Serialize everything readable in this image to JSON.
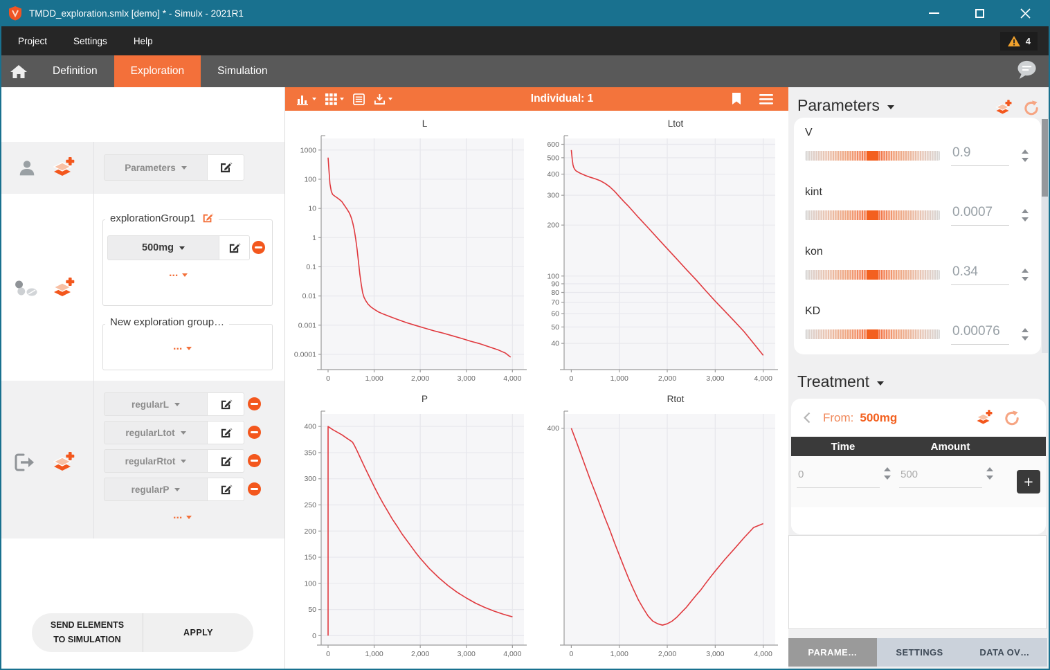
{
  "window": {
    "title": "TMDD_exploration.smlx [demo] * - Simulx - 2021R1"
  },
  "menu": {
    "items": [
      "Project",
      "Settings",
      "Help"
    ],
    "warning_count": "4"
  },
  "nav": {
    "tabs": [
      {
        "label": "Definition",
        "active": false
      },
      {
        "label": "Exploration",
        "active": true
      },
      {
        "label": "Simulation",
        "active": false
      }
    ]
  },
  "sidebar": {
    "selector": {
      "label": "Parameters"
    },
    "group1": {
      "title": "explorationGroup1",
      "dose_label": "500mg",
      "more": "..."
    },
    "new_group": {
      "title": "New exploration group…",
      "more": "..."
    },
    "outputs": {
      "items": [
        "regularL",
        "regularLtot",
        "regularRtot",
        "regularP"
      ],
      "more": "..."
    },
    "send_button": {
      "line1": "SEND ELEMENTS",
      "line2": "TO SIMULATION"
    },
    "apply_button": "APPLY"
  },
  "toolbar": {
    "individual_label": "Individual: 1"
  },
  "params_panel": {
    "title": "Parameters",
    "items": [
      {
        "name": "V",
        "value": "0.9"
      },
      {
        "name": "kint",
        "value": "0.0007"
      },
      {
        "name": "kon",
        "value": "0.34"
      },
      {
        "name": "KD",
        "value": "0.00076"
      }
    ]
  },
  "treatment": {
    "title": "Treatment",
    "from_label": "From:",
    "from_value": "500mg",
    "columns": [
      "Time",
      "Amount"
    ],
    "row": {
      "time": "0",
      "amount": "500"
    },
    "add_button": "+"
  },
  "bottom_tabs": {
    "items": [
      {
        "label": "PARAME…",
        "active": true
      },
      {
        "label": "SETTINGS",
        "active": false
      },
      {
        "label": "DATA OV…",
        "active": false
      }
    ]
  },
  "icons": {
    "app": "simulx-shield",
    "warning": "warning-triangle",
    "home": "house",
    "chat": "speech-bubble",
    "individual": "person",
    "treatment": "pills",
    "output": "sign-out-arrow",
    "add_element": "layers-plus",
    "edit": "pencil-square",
    "remove": "minus-circle",
    "chart_type": "bar-chart",
    "layout": "grid",
    "data_table": "table-lines",
    "export": "download",
    "bookmark": "bookmark",
    "menu": "hamburger",
    "reset": "undo-arrow"
  },
  "colors": {
    "titlebar": "#19718f",
    "accent": "#f3703a",
    "accent_dark": "#f3571d",
    "curve": "#e0393e",
    "plot_bg": "#f6f6f8",
    "grid_line": "#e8e8ed",
    "dark_header": "#3a3a3a",
    "warning": "#f0a12c"
  },
  "chart_data": [
    {
      "id": "L",
      "type": "line",
      "title": "L",
      "yscale": "log",
      "ydomain": [
        3e-05,
        2500
      ],
      "yticks": [
        1000,
        100,
        10,
        1,
        0.1,
        0.01,
        0.001,
        0.0001
      ],
      "ytick_labels": [
        "1000",
        "100",
        "10",
        "1",
        "0.1",
        "0.01",
        "0.001",
        "0.0001"
      ],
      "xdomain": [
        -150,
        4250
      ],
      "xticks": [
        0,
        1000,
        2000,
        3000,
        4000
      ],
      "xtick_labels": [
        "0",
        "1,000",
        "2,000",
        "3,000",
        "4,000"
      ],
      "ml": 52,
      "series": [
        {
          "name": "L",
          "points": [
            [
              0,
              550
            ],
            [
              20,
              200
            ],
            [
              40,
              70
            ],
            [
              70,
              38
            ],
            [
              100,
              30
            ],
            [
              150,
              26
            ],
            [
              200,
              23
            ],
            [
              250,
              20
            ],
            [
              300,
              17
            ],
            [
              350,
              13
            ],
            [
              400,
              10
            ],
            [
              450,
              7.5
            ],
            [
              480,
              6
            ],
            [
              510,
              4.5
            ],
            [
              540,
              3
            ],
            [
              570,
              1.8
            ],
            [
              600,
              0.9
            ],
            [
              630,
              0.4
            ],
            [
              660,
              0.15
            ],
            [
              690,
              0.055
            ],
            [
              720,
              0.025
            ],
            [
              750,
              0.013
            ],
            [
              780,
              0.009
            ],
            [
              820,
              0.0068
            ],
            [
              870,
              0.0052
            ],
            [
              930,
              0.0042
            ],
            [
              1000,
              0.0035
            ],
            [
              1100,
              0.0028
            ],
            [
              1200,
              0.0024
            ],
            [
              1350,
              0.00195
            ],
            [
              1500,
              0.00158
            ],
            [
              1700,
              0.00122
            ],
            [
              1900,
              0.00098
            ],
            [
              2100,
              0.00079
            ],
            [
              2300,
              0.00064
            ],
            [
              2500,
              0.00053
            ],
            [
              2700,
              0.00043
            ],
            [
              2900,
              0.00035
            ],
            [
              3100,
              0.00028
            ],
            [
              3300,
              0.00023
            ],
            [
              3500,
              0.00018
            ],
            [
              3700,
              0.00014
            ],
            [
              3850,
              0.00011
            ],
            [
              3960,
              8e-05
            ]
          ]
        }
      ]
    },
    {
      "id": "Ltot",
      "type": "line",
      "title": "Ltot",
      "yscale": "log",
      "ydomain": [
        28,
        650
      ],
      "yticks": [
        600,
        500,
        400,
        300,
        200,
        100,
        90,
        80,
        70,
        60,
        50,
        40
      ],
      "ytick_labels": [
        "600",
        "500",
        "400",
        "300",
        "200",
        "100",
        "90",
        "80",
        "70",
        "60",
        "50",
        "40"
      ],
      "xdomain": [
        -150,
        4250
      ],
      "xticks": [
        0,
        1000,
        2000,
        3000,
        4000
      ],
      "xtick_labels": [
        "0",
        "1,000",
        "2,000",
        "3,000",
        "4,000"
      ],
      "ml": 40,
      "series": [
        {
          "name": "Ltot",
          "points": [
            [
              0,
              555
            ],
            [
              10,
              520
            ],
            [
              20,
              487
            ],
            [
              35,
              455
            ],
            [
              50,
              438
            ],
            [
              70,
              427
            ],
            [
              100,
              418
            ],
            [
              150,
              410
            ],
            [
              200,
              403
            ],
            [
              300,
              392
            ],
            [
              400,
              383
            ],
            [
              500,
              375
            ],
            [
              600,
              366
            ],
            [
              700,
              353
            ],
            [
              800,
              337
            ],
            [
              900,
              317
            ],
            [
              1000,
              295
            ],
            [
              1100,
              275
            ],
            [
              1200,
              257
            ],
            [
              1400,
              222
            ],
            [
              1600,
              193
            ],
            [
              1800,
              167
            ],
            [
              2000,
              145
            ],
            [
              2200,
              126
            ],
            [
              2400,
              109
            ],
            [
              2600,
              95
            ],
            [
              2800,
              82
            ],
            [
              3000,
              71
            ],
            [
              3200,
              62
            ],
            [
              3400,
              54
            ],
            [
              3600,
              47
            ],
            [
              3800,
              40
            ],
            [
              4000,
              34
            ]
          ]
        }
      ]
    },
    {
      "id": "P",
      "type": "line",
      "title": "P",
      "yscale": "linear",
      "ydomain": [
        -18,
        424
      ],
      "yticks": [
        0,
        50,
        100,
        150,
        200,
        250,
        300,
        350,
        400
      ],
      "ytick_labels": [
        "0",
        "50",
        "100",
        "150",
        "200",
        "250",
        "300",
        "350",
        "400"
      ],
      "xdomain": [
        -150,
        4250
      ],
      "xticks": [
        0,
        1000,
        2000,
        3000,
        4000
      ],
      "xtick_labels": [
        "0",
        "1,000",
        "2,000",
        "3,000",
        "4,000"
      ],
      "ml": 52,
      "series": [
        {
          "name": "P",
          "points": [
            [
              0,
              0
            ],
            [
              0,
              400
            ],
            [
              30,
              398
            ],
            [
              100,
              394
            ],
            [
              200,
              389
            ],
            [
              300,
              384
            ],
            [
              400,
              378
            ],
            [
              500,
              372
            ],
            [
              530,
              370
            ],
            [
              570,
              364
            ],
            [
              620,
              355
            ],
            [
              700,
              340
            ],
            [
              800,
              321
            ],
            [
              900,
              303
            ],
            [
              1000,
              285
            ],
            [
              1100,
              268
            ],
            [
              1200,
              252
            ],
            [
              1300,
              237
            ],
            [
              1400,
              222
            ],
            [
              1500,
              209
            ],
            [
              1600,
              195
            ],
            [
              1700,
              183
            ],
            [
              1800,
              171
            ],
            [
              1900,
              159
            ],
            [
              2000,
              148
            ],
            [
              2200,
              128
            ],
            [
              2400,
              111
            ],
            [
              2600,
              96
            ],
            [
              2800,
              83
            ],
            [
              3000,
              72
            ],
            [
              3200,
              62
            ],
            [
              3400,
              54
            ],
            [
              3600,
              47
            ],
            [
              3800,
              41
            ],
            [
              4000,
              36
            ]
          ]
        }
      ]
    },
    {
      "id": "Rtot",
      "type": "line",
      "title": "Rtot",
      "yscale": "log",
      "ydomain": [
        116,
        434
      ],
      "yticks": [
        400
      ],
      "ytick_labels": [
        "400"
      ],
      "xdomain": [
        -150,
        4250
      ],
      "xticks": [
        0,
        1000,
        2000,
        3000,
        4000
      ],
      "xtick_labels": [
        "0",
        "1,000",
        "2,000",
        "3,000",
        "4,000"
      ],
      "ml": 40,
      "series": [
        {
          "name": "Rtot",
          "points": [
            [
              0,
              400
            ],
            [
              100,
              372
            ],
            [
              200,
              345
            ],
            [
              300,
              320
            ],
            [
              400,
              297
            ],
            [
              500,
              277
            ],
            [
              600,
              258
            ],
            [
              700,
              240
            ],
            [
              800,
              224
            ],
            [
              900,
              208
            ],
            [
              1000,
              194
            ],
            [
              1100,
              181
            ],
            [
              1200,
              169
            ],
            [
              1300,
              159
            ],
            [
              1400,
              150
            ],
            [
              1500,
              143
            ],
            [
              1600,
              137
            ],
            [
              1700,
              133
            ],
            [
              1800,
              131
            ],
            [
              1900,
              130
            ],
            [
              2000,
              131
            ],
            [
              2100,
              133
            ],
            [
              2200,
              136
            ],
            [
              2300,
              140
            ],
            [
              2400,
              144
            ],
            [
              2500,
              149
            ],
            [
              2600,
              154
            ],
            [
              2700,
              159
            ],
            [
              2800,
              165
            ],
            [
              2900,
              171
            ],
            [
              3000,
              177
            ],
            [
              3200,
              189
            ],
            [
              3400,
              201
            ],
            [
              3600,
              214
            ],
            [
              3800,
              227
            ],
            [
              4000,
              232
            ]
          ]
        }
      ]
    }
  ]
}
